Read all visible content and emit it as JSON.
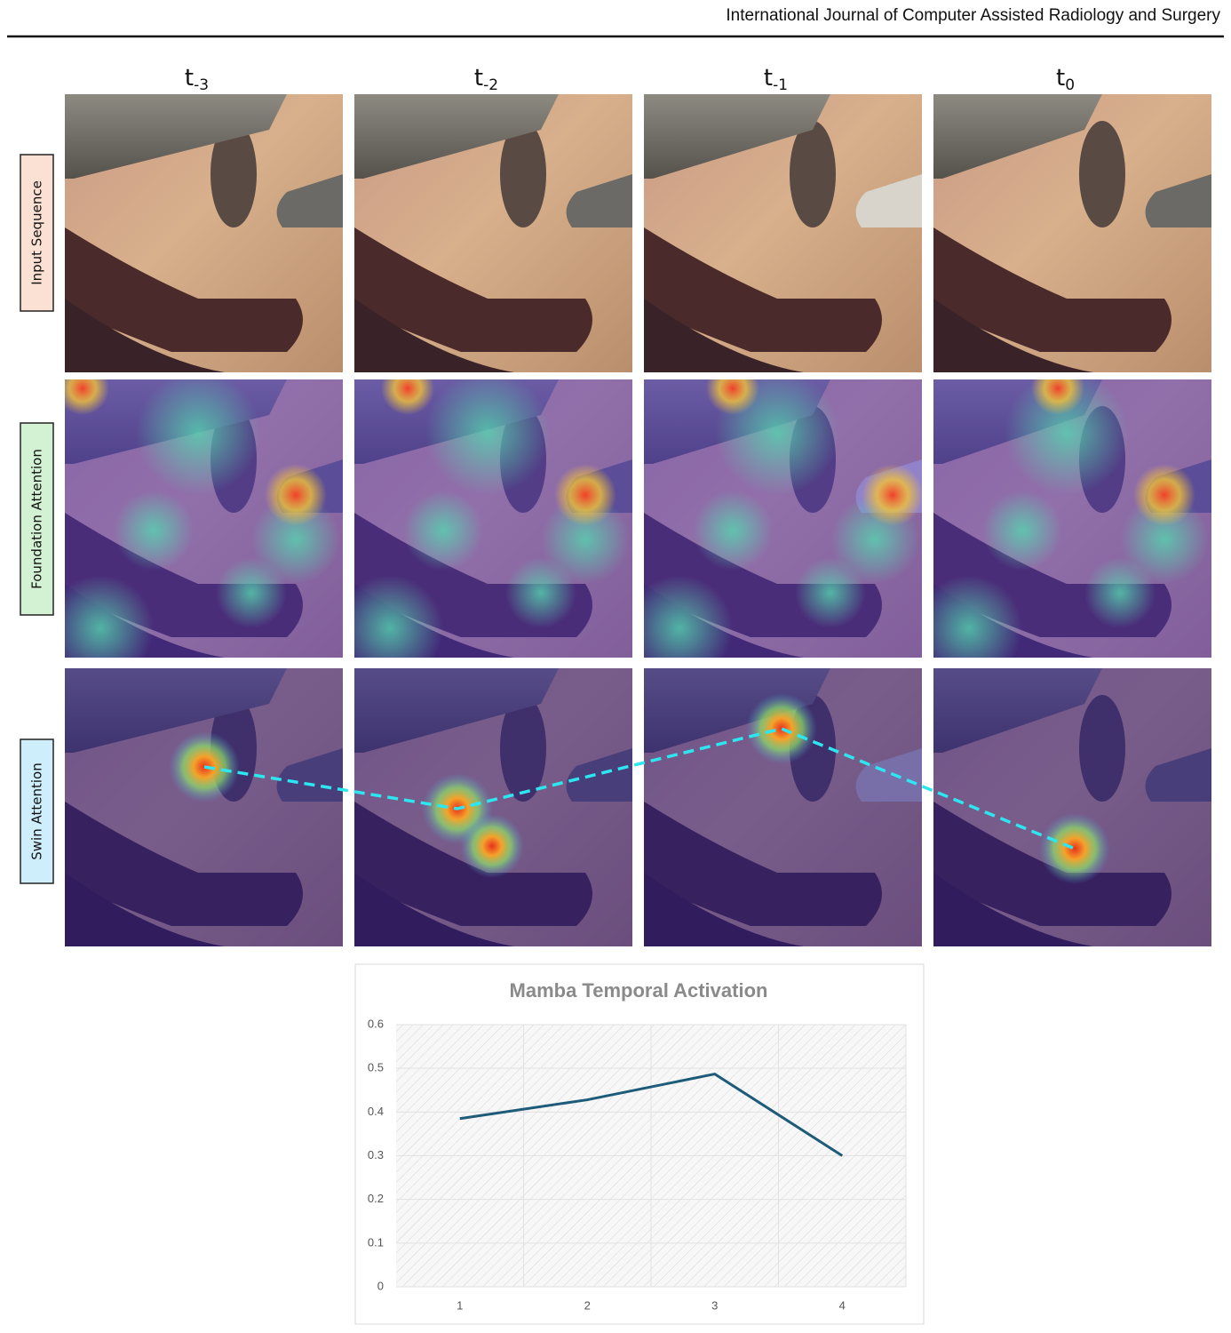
{
  "header": {
    "journal": "International Journal of Computer Assisted Radiology and Surgery"
  },
  "columns": [
    {
      "base": "t",
      "sub": "-3"
    },
    {
      "base": "t",
      "sub": "-2"
    },
    {
      "base": "t",
      "sub": "-1"
    },
    {
      "base": "t",
      "sub": "0"
    }
  ],
  "rows": [
    "Input Sequence",
    "Foundation Attention",
    "Swin Attention"
  ],
  "chart_data": {
    "type": "line",
    "title": "Mamba Temporal Activation",
    "categories": [
      "1",
      "2",
      "3",
      "4"
    ],
    "series": [
      {
        "name": "Mamba Temporal Activation",
        "color": "#1d5b79",
        "values": [
          0.385,
          0.428,
          0.487,
          0.3
        ]
      }
    ],
    "ylim": [
      0,
      0.6
    ],
    "yticks": [
      0,
      0.1,
      0.2,
      0.3,
      0.4,
      0.5,
      0.6
    ],
    "grid": true
  }
}
